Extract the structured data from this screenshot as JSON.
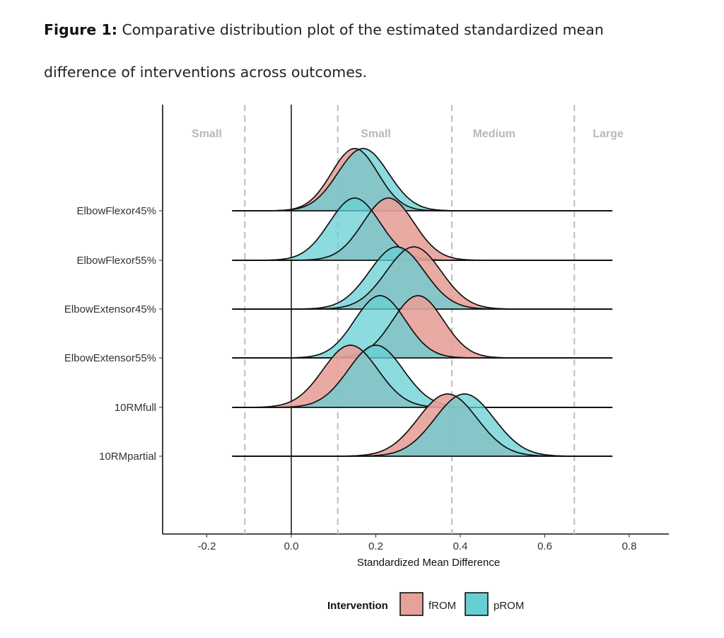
{
  "caption": {
    "label": "Figure 1:",
    "text": "Comparative distribution plot of the estimated standardized mean difference of interventions across outcomes."
  },
  "colors": {
    "fROM": "#e7a19a",
    "pROM": "#66cfd4",
    "overlap": "#5f9ea3",
    "ref_line": "#bdbdbd",
    "region_text": "#b8b8b8"
  },
  "chart_data": {
    "type": "ridgeline-density",
    "xlabel": "Standardized Mean Difference",
    "ylabel": "",
    "xlim": [
      -0.31,
      0.9
    ],
    "xticks": [
      -0.2,
      0.0,
      0.2,
      0.4,
      0.6,
      0.8
    ],
    "xtick_labels": [
      "-0.2",
      "0.0",
      "0.2",
      "0.4",
      "0.6",
      "0.8"
    ],
    "zero_line": 0.0,
    "reference_lines": [
      -0.11,
      0.11,
      0.38,
      0.67
    ],
    "regions": [
      {
        "label": "Small",
        "x": -0.2
      },
      {
        "label": "Small",
        "x": 0.2
      },
      {
        "label": "Medium",
        "x": 0.48
      },
      {
        "label": "Large",
        "x": 0.75
      }
    ],
    "baseline_range": [
      -0.14,
      0.76
    ],
    "categories": [
      "ElbowFlexor45%",
      "ElbowFlexor55%",
      "ElbowExtensor45%",
      "ElbowExtensor55%",
      "10RMfull",
      "10RMpartial"
    ],
    "series": [
      {
        "name": "fROM",
        "peaks": [
          0.15,
          0.23,
          0.29,
          0.3,
          0.14,
          0.37
        ],
        "sd": [
          0.055,
          0.06,
          0.065,
          0.06,
          0.065,
          0.07
        ]
      },
      {
        "name": "pROM",
        "peaks": [
          0.17,
          0.15,
          0.25,
          0.21,
          0.2,
          0.41
        ],
        "sd": [
          0.06,
          0.06,
          0.065,
          0.06,
          0.065,
          0.07
        ]
      }
    ],
    "legend": {
      "title": "Intervention",
      "entries": [
        "fROM",
        "pROM"
      ],
      "position": "bottom"
    }
  }
}
